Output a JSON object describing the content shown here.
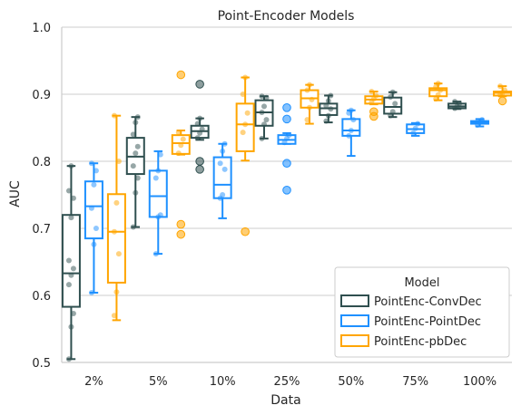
{
  "chart_data": {
    "type": "box",
    "title": "Point-Encoder Models",
    "xlabel": "Data",
    "ylabel": "AUC",
    "ylim": [
      0.5,
      1.0
    ],
    "yticks": [
      "0.5",
      "0.6",
      "0.7",
      "0.8",
      "0.9",
      "1.0"
    ],
    "ytick_values": [
      0.5,
      0.6,
      0.7,
      0.8,
      0.9,
      1.0
    ],
    "grid": "horizontal",
    "legend_position": "bottom-right",
    "legend_title": "Model",
    "categories": [
      "2%",
      "5%",
      "10%",
      "25%",
      "50%",
      "75%",
      "100%"
    ],
    "series": [
      {
        "name": "PointEnc-ConvDec",
        "color": "#2f4f4f",
        "boxes": [
          {
            "whislo": 0.505,
            "q1": 0.583,
            "med": 0.633,
            "q3": 0.72,
            "whishi": 0.793,
            "fliers": [],
            "points": [
              0.505,
              0.553,
              0.573,
              0.616,
              0.63,
              0.64,
              0.652,
              0.716,
              0.745,
              0.756,
              0.793
            ]
          },
          {
            "whislo": 0.702,
            "q1": 0.781,
            "med": 0.807,
            "q3": 0.835,
            "whishi": 0.866,
            "fliers": [],
            "points": [
              0.702,
              0.753,
              0.775,
              0.793,
              0.812,
              0.822,
              0.84,
              0.858,
              0.866
            ]
          },
          {
            "whislo": 0.832,
            "q1": 0.835,
            "med": 0.845,
            "q3": 0.853,
            "whishi": 0.864,
            "fliers": [
              0.915,
              0.8,
              0.788
            ],
            "points": [
              0.835,
              0.842,
              0.848,
              0.856,
              0.864
            ]
          },
          {
            "whislo": 0.834,
            "q1": 0.853,
            "med": 0.873,
            "q3": 0.891,
            "whishi": 0.897,
            "fliers": [],
            "points": [
              0.834,
              0.855,
              0.862,
              0.873,
              0.882,
              0.895,
              0.897
            ]
          },
          {
            "whislo": 0.858,
            "q1": 0.869,
            "med": 0.879,
            "q3": 0.886,
            "whishi": 0.898,
            "fliers": [],
            "points": [
              0.86,
              0.868,
              0.878,
              0.883,
              0.89,
              0.898
            ]
          },
          {
            "whislo": 0.866,
            "q1": 0.871,
            "med": 0.881,
            "q3": 0.895,
            "whishi": 0.903,
            "fliers": [],
            "points": [
              0.868,
              0.874,
              0.886,
              0.896,
              0.903
            ]
          },
          {
            "whislo": 0.878,
            "q1": 0.879,
            "med": 0.882,
            "q3": 0.886,
            "whishi": 0.889,
            "fliers": [],
            "points": [
              0.879,
              0.882,
              0.886,
              0.889
            ]
          }
        ]
      },
      {
        "name": "PointEnc-PointDec",
        "color": "#1e90ff",
        "boxes": [
          {
            "whislo": 0.604,
            "q1": 0.685,
            "med": 0.733,
            "q3": 0.77,
            "whishi": 0.797,
            "fliers": [],
            "points": [
              0.604,
              0.676,
              0.7,
              0.73,
              0.765,
              0.786,
              0.797
            ]
          },
          {
            "whislo": 0.662,
            "q1": 0.717,
            "med": 0.748,
            "q3": 0.786,
            "whishi": 0.815,
            "fliers": [],
            "points": [
              0.662,
              0.717,
              0.72,
              0.775,
              0.786,
              0.81
            ]
          },
          {
            "whislo": 0.715,
            "q1": 0.745,
            "med": 0.765,
            "q3": 0.806,
            "whishi": 0.826,
            "fliers": [],
            "points": [
              0.745,
              0.75,
              0.788,
              0.797,
              0.815,
              0.826
            ]
          },
          {
            "whislo": 0.826,
            "q1": 0.826,
            "med": 0.832,
            "q3": 0.839,
            "whishi": 0.842,
            "fliers": [
              0.88,
              0.863,
              0.797,
              0.757
            ],
            "points": [
              0.828,
              0.834,
              0.839
            ]
          },
          {
            "whislo": 0.808,
            "q1": 0.838,
            "med": 0.846,
            "q3": 0.863,
            "whishi": 0.876,
            "fliers": [],
            "points": [
              0.838,
              0.846,
              0.862,
              0.872,
              0.876
            ]
          },
          {
            "whislo": 0.838,
            "q1": 0.842,
            "med": 0.848,
            "q3": 0.855,
            "whishi": 0.857,
            "fliers": [],
            "points": [
              0.842,
              0.849,
              0.856
            ]
          },
          {
            "whislo": 0.852,
            "q1": 0.856,
            "med": 0.858,
            "q3": 0.86,
            "whishi": 0.863,
            "fliers": [],
            "points": [
              0.854,
              0.858,
              0.862
            ]
          }
        ]
      },
      {
        "name": "PointEnc-pbDec",
        "color": "#ffa500",
        "boxes": [
          {
            "whislo": 0.563,
            "q1": 0.619,
            "med": 0.695,
            "q3": 0.751,
            "whishi": 0.868,
            "fliers": [],
            "points": [
              0.57,
              0.605,
              0.662,
              0.695,
              0.738,
              0.8,
              0.868
            ]
          },
          {
            "whislo": 0.81,
            "q1": 0.811,
            "med": 0.827,
            "q3": 0.839,
            "whishi": 0.846,
            "fliers": [
              0.929,
              0.706,
              0.691
            ],
            "points": [
              0.812,
              0.824,
              0.833,
              0.843
            ]
          },
          {
            "whislo": 0.801,
            "q1": 0.815,
            "med": 0.855,
            "q3": 0.886,
            "whishi": 0.925,
            "fliers": [
              0.695
            ],
            "points": [
              0.843,
              0.855,
              0.872,
              0.9,
              0.925
            ]
          },
          {
            "whislo": 0.856,
            "q1": 0.88,
            "med": 0.894,
            "q3": 0.906,
            "whishi": 0.914,
            "fliers": [],
            "points": [
              0.862,
              0.88,
              0.892,
              0.906,
              0.914
            ]
          },
          {
            "whislo": 0.885,
            "q1": 0.886,
            "med": 0.892,
            "q3": 0.897,
            "whishi": 0.904,
            "fliers": [
              0.874,
              0.867
            ],
            "points": [
              0.888,
              0.893,
              0.898,
              0.904
            ]
          },
          {
            "whislo": 0.891,
            "q1": 0.897,
            "med": 0.906,
            "q3": 0.909,
            "whishi": 0.916,
            "fliers": [],
            "points": [
              0.893,
              0.899,
              0.906,
              0.911,
              0.916
            ]
          },
          {
            "whislo": 0.897,
            "q1": 0.898,
            "med": 0.902,
            "q3": 0.904,
            "whishi": 0.912,
            "fliers": [
              0.89
            ],
            "points": [
              0.899,
              0.902,
              0.906,
              0.912
            ]
          }
        ]
      }
    ]
  }
}
